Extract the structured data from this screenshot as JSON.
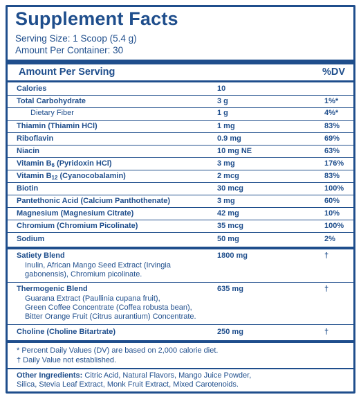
{
  "title": "Supplement Facts",
  "serving_size": "Serving Size: 1 Scoop (5.4 g)",
  "per_container": "Amount Per Container: 30",
  "header": {
    "amount": "Amount Per Serving",
    "dv": "%DV"
  },
  "rows": [
    {
      "name": "Calories",
      "amount": "10",
      "dv": ""
    },
    {
      "name": "Total Carbohydrate",
      "amount": "3 g",
      "dv": "1%*"
    },
    {
      "name": "Dietary Fiber",
      "amount": "1 g",
      "dv": "4%*"
    },
    {
      "name": "Thiamin (Thiamin HCl)",
      "amount": "1 mg",
      "dv": "83%"
    },
    {
      "name": "Riboflavin",
      "amount": "0.9 mg",
      "dv": "69%"
    },
    {
      "name": "Niacin",
      "amount": "10 mg NE",
      "dv": "63%"
    },
    {
      "name_pre": "Vitamin B",
      "name_sub": "6",
      "name_post": " (Pyridoxin HCl)",
      "amount": "3 mg",
      "dv": "176%"
    },
    {
      "name_pre": "Vitamin B",
      "name_sub": "12",
      "name_post": " (Cyanocobalamin)",
      "amount": "2 mcg",
      "dv": "83%"
    },
    {
      "name": "Biotin",
      "amount": "30 mcg",
      "dv": "100%"
    },
    {
      "name": "Pantethonic Acid (Calcium Panthothenate)",
      "amount": "3 mg",
      "dv": "60%"
    },
    {
      "name": "Magnesium (Magnesium Citrate)",
      "amount": "42 mg",
      "dv": "10%"
    },
    {
      "name": "Chromium (Chromium Picolinate)",
      "amount": "35 mcg",
      "dv": "100%"
    },
    {
      "name": "Sodium",
      "amount": "50 mg",
      "dv": "2%"
    }
  ],
  "blends": [
    {
      "name": "Satiety Blend",
      "amount": "1800 mg",
      "dv": "†",
      "lines": [
        "Inulin, African Mango Seed Extract (Irvingia",
        "gabonensis), Chromium picolinate."
      ]
    },
    {
      "name": "Thermogenic Blend",
      "amount": "635 mg",
      "dv": "†",
      "lines": [
        "Guarana Extract (Paullinia cupana fruit),",
        "Green Coffee Concentrate (Coffea robusta bean),",
        "Bitter Orange Fruit (Citrus aurantium) Concentrate."
      ]
    },
    {
      "name": "Choline (Choline Bitartrate)",
      "amount": "250 mg",
      "dv": "†",
      "lines": []
    }
  ],
  "footnotes": [
    "* Percent Daily Values (DV) are based on 2,000 calorie diet.",
    "† Daily Value not established."
  ],
  "other_ingredients": {
    "label": "Other Ingredients:",
    "line1": " Citric Acid, Natural Flavors, Mango Juice Powder,",
    "line2": "Silica, Stevia Leaf Extract, Monk Fruit Extract, Mixed Carotenoids."
  },
  "colors": {
    "ink": "#1f4e8c",
    "background": "#ffffff"
  }
}
